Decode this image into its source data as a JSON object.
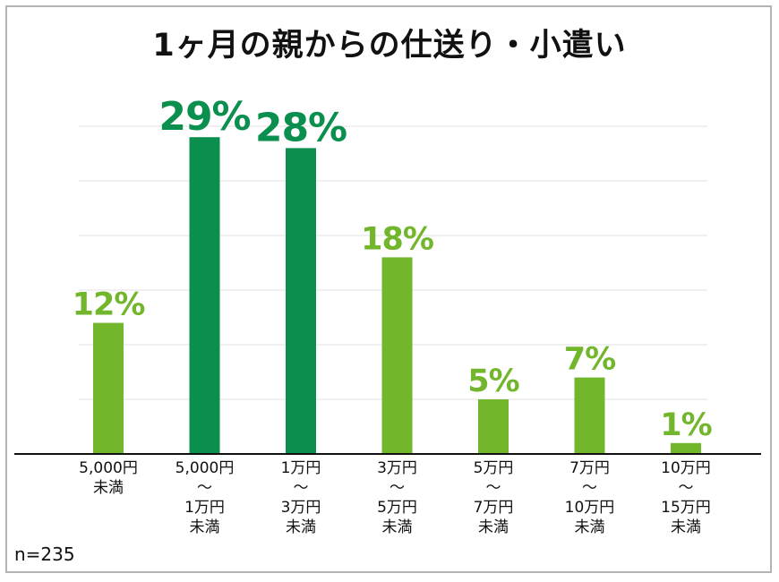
{
  "chart_data": {
    "type": "bar",
    "title": "1ヶ月の親からの仕送り・小遣い",
    "categories": [
      "5,000円\n未満",
      "5,000円\n〜\n1万円\n未満",
      "1万円\n〜\n3万円\n未満",
      "3万円\n〜\n5万円\n未満",
      "5万円\n〜\n7万円\n未満",
      "7万円\n〜\n10万円\n未満",
      "10万円\n〜\n15万円\n未満"
    ],
    "values": [
      12,
      29,
      28,
      18,
      5,
      7,
      1
    ],
    "data_labels": [
      "12%",
      "29%",
      "28%",
      "18%",
      "5%",
      "7%",
      "1%"
    ],
    "highlighted": [
      false,
      true,
      true,
      false,
      false,
      false,
      false
    ],
    "ylim": [
      0,
      35
    ],
    "grid": true,
    "xlabel": "",
    "ylabel": "",
    "note": "n=235",
    "colors": {
      "highlight": "#0b8f4e",
      "normal": "#72b62c",
      "grid": "#e2e2e2",
      "axis": "#111111"
    }
  }
}
